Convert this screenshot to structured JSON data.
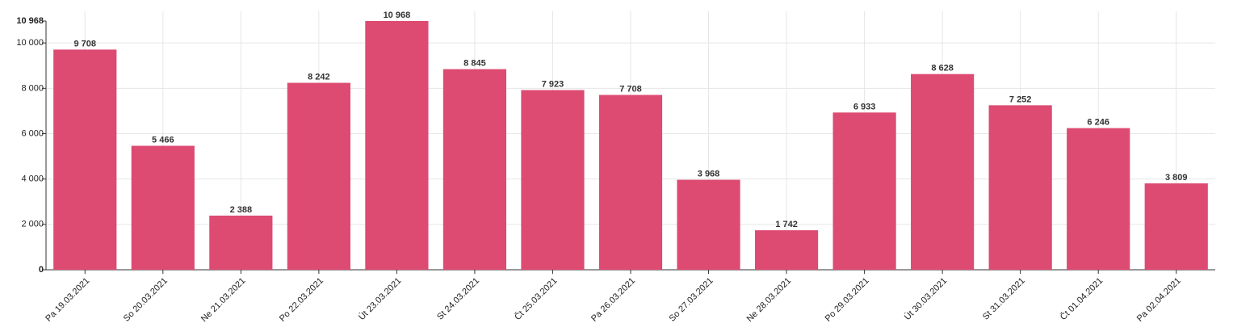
{
  "chart_data": {
    "type": "bar",
    "categories": [
      "Pa 19.03.2021",
      "So 20.03.2021",
      "Ne 21.03.2021",
      "Po 22.03.2021",
      "Út 23.03.2021",
      "St 24.03.2021",
      "Čt 25.03.2021",
      "Pa 26.03.2021",
      "So 27.03.2021",
      "Ne 28.03.2021",
      "Po 29.03.2021",
      "Út 30.03.2021",
      "St 31.03.2021",
      "Čt 01.04.2021",
      "Pa 02.04.2021"
    ],
    "values": [
      9708,
      5466,
      2388,
      8242,
      10968,
      8845,
      7923,
      7708,
      3968,
      1742,
      6933,
      8628,
      7252,
      6246,
      3809
    ],
    "value_labels": [
      "9 708",
      "5 466",
      "2 388",
      "8 242",
      "10 968",
      "8 845",
      "7 923",
      "7 708",
      "3 968",
      "1 742",
      "6 933",
      "8 628",
      "7 252",
      "6 246",
      "3 809"
    ],
    "y_ticks": [
      0,
      2000,
      4000,
      6000,
      8000,
      10000,
      10968
    ],
    "y_tick_labels": [
      "0",
      "2 000",
      "4 000",
      "6 000",
      "8 000",
      "10 000",
      "10 968"
    ],
    "title": "",
    "xlabel": "",
    "ylabel": "",
    "ylim": [
      0,
      10968
    ],
    "grid": true,
    "legend": "none",
    "colors": {
      "bar": "#dd4b72",
      "grid": "#e6e6e6",
      "axis": "#333333",
      "text": "#222222"
    }
  }
}
